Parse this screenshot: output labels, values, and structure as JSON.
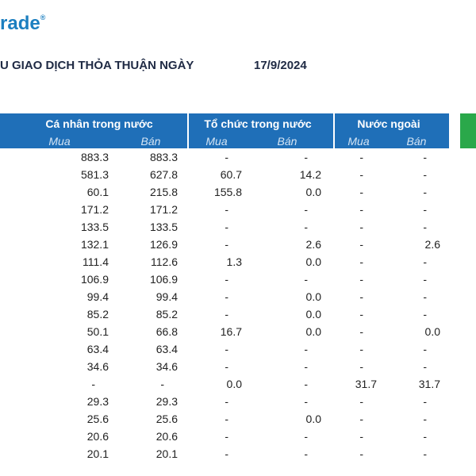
{
  "logo": {
    "text": "rade",
    "mark": "®"
  },
  "title": {
    "text": "U GIAO DỊCH THỎA THUẬN NGÀY",
    "date": "17/9/2024"
  },
  "table": {
    "groups": [
      "Cá nhân trong nước",
      "Tổ chức trong nước",
      "Nước ngoài"
    ],
    "subheaders": [
      "Mua",
      "Bán",
      "Mua",
      "Bán",
      "Mua",
      "Bán"
    ],
    "rows": [
      [
        "883.3",
        "883.3",
        "-",
        "-",
        "-",
        "-"
      ],
      [
        "581.3",
        "627.8",
        "60.7",
        "14.2",
        "-",
        "-"
      ],
      [
        "60.1",
        "215.8",
        "155.8",
        "0.0",
        "-",
        "-"
      ],
      [
        "171.2",
        "171.2",
        "-",
        "-",
        "-",
        "-"
      ],
      [
        "133.5",
        "133.5",
        "-",
        "-",
        "-",
        "-"
      ],
      [
        "132.1",
        "126.9",
        "-",
        "2.6",
        "-",
        "2.6"
      ],
      [
        "111.4",
        "112.6",
        "1.3",
        "0.0",
        "-",
        "-"
      ],
      [
        "106.9",
        "106.9",
        "-",
        "-",
        "-",
        "-"
      ],
      [
        "99.4",
        "99.4",
        "-",
        "0.0",
        "-",
        "-"
      ],
      [
        "85.2",
        "85.2",
        "-",
        "0.0",
        "-",
        "-"
      ],
      [
        "50.1",
        "66.8",
        "16.7",
        "0.0",
        "-",
        "0.0"
      ],
      [
        "63.4",
        "63.4",
        "-",
        "-",
        "-",
        "-"
      ],
      [
        "34.6",
        "34.6",
        "-",
        "-",
        "-",
        "-"
      ],
      [
        "-",
        "-",
        "0.0",
        "-",
        "31.7",
        "31.7"
      ],
      [
        "29.3",
        "29.3",
        "-",
        "-",
        "-",
        "-"
      ],
      [
        "25.6",
        "25.6",
        "-",
        "0.0",
        "-",
        "-"
      ],
      [
        "20.6",
        "20.6",
        "-",
        "-",
        "-",
        "-"
      ],
      [
        "20.1",
        "20.1",
        "-",
        "-",
        "-",
        "-"
      ]
    ]
  }
}
